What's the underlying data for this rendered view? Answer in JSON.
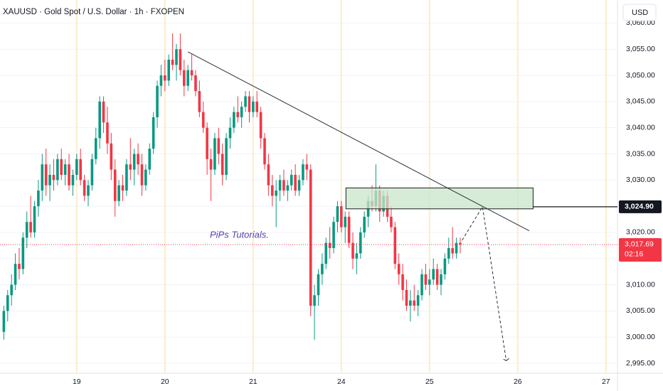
{
  "chart_data": {
    "type": "candlestick",
    "title": "XAUUSD · Gold Spot / U.S. Dollar · 1h · FXOPEN",
    "currency": "USD",
    "watermark": "PiPs Tutorials.",
    "up_color": "#089981",
    "down_color": "#f23645",
    "xlim": [
      -20,
      141
    ],
    "ylim": [
      2993.1,
      3064.4
    ],
    "xticks": [
      {
        "value": 0,
        "label": "19"
      },
      {
        "value": 23,
        "label": "20"
      },
      {
        "value": 46,
        "label": "21"
      },
      {
        "value": 69,
        "label": "24"
      },
      {
        "value": 92,
        "label": "25"
      },
      {
        "value": 115,
        "label": "26"
      },
      {
        "value": 138,
        "label": "27"
      }
    ],
    "yticks": [
      {
        "value": 2995,
        "label": "2,995.00"
      },
      {
        "value": 3000,
        "label": "3,000.00"
      },
      {
        "value": 3005,
        "label": "3,005.00"
      },
      {
        "value": 3010,
        "label": "3,010.00"
      },
      {
        "value": 3015,
        "label": "3,015.00"
      },
      {
        "value": 3020,
        "label": "3,020.00"
      },
      {
        "value": 3025,
        "label": "3,025.00"
      },
      {
        "value": 3030,
        "label": "3,030.00"
      },
      {
        "value": 3035,
        "label": "3,035.00"
      },
      {
        "value": 3040,
        "label": "3,040.00"
      },
      {
        "value": 3045,
        "label": "3,045.00"
      },
      {
        "value": 3050,
        "label": "3,050.00"
      },
      {
        "value": 3055,
        "label": "3,055.00"
      },
      {
        "value": 3060,
        "label": "3,060.00"
      }
    ],
    "x": [
      -19,
      -18,
      -17,
      -16,
      -15,
      -14,
      -13,
      -12,
      -11,
      -10,
      -9,
      -8,
      -7,
      -6,
      -5,
      -4,
      -3,
      -2,
      -1,
      0,
      1,
      2,
      3,
      4,
      5,
      6,
      7,
      8,
      9,
      10,
      11,
      12,
      13,
      14,
      15,
      16,
      17,
      18,
      19,
      20,
      21,
      22,
      23,
      24,
      25,
      26,
      27,
      28,
      29,
      30,
      31,
      32,
      33,
      34,
      35,
      36,
      37,
      38,
      39,
      40,
      41,
      42,
      43,
      44,
      45,
      46,
      47,
      48,
      49,
      50,
      51,
      52,
      53,
      54,
      55,
      56,
      57,
      58,
      59,
      60,
      61,
      62,
      63,
      64,
      65,
      66,
      67,
      68,
      69,
      70,
      71,
      72,
      73,
      74,
      75,
      76,
      77,
      78,
      79,
      80,
      81,
      82,
      83,
      84,
      85,
      86,
      87,
      88,
      89,
      90,
      91,
      92,
      93,
      94,
      95,
      96,
      97,
      98,
      99,
      100
    ],
    "candles": [
      [
        3001,
        3006,
        2999.5,
        3005
      ],
      [
        3005,
        3009,
        3003,
        3008
      ],
      [
        3008,
        3012,
        3006,
        3010
      ],
      [
        3010,
        3016,
        3009,
        3014
      ],
      [
        3014,
        3017,
        3011,
        3013
      ],
      [
        3013,
        3020,
        3012,
        3019
      ],
      [
        3019,
        3024,
        3017,
        3022
      ],
      [
        3022,
        3027,
        3019,
        3020
      ],
      [
        3020,
        3026,
        3019,
        3025
      ],
      [
        3025,
        3030,
        3023,
        3028
      ],
      [
        3028,
        3035,
        3026,
        3033
      ],
      [
        3033,
        3036,
        3027,
        3029
      ],
      [
        3029,
        3033,
        3026,
        3031
      ],
      [
        3031,
        3034,
        3028,
        3030
      ],
      [
        3030,
        3035,
        3029,
        3034
      ],
      [
        3034,
        3036,
        3030,
        3031
      ],
      [
        3031,
        3034,
        3029,
        3033
      ],
      [
        3033,
        3035,
        3028,
        3029
      ],
      [
        3029,
        3032,
        3027,
        3031
      ],
      [
        3031,
        3035,
        3030,
        3034
      ],
      [
        3034,
        3036,
        3029,
        3030
      ],
      [
        3030,
        3031,
        3026,
        3027
      ],
      [
        3027,
        3030,
        3025,
        3029
      ],
      [
        3029,
        3035,
        3028,
        3034
      ],
      [
        3034,
        3040,
        3033,
        3038
      ],
      [
        3038,
        3046,
        3036,
        3045
      ],
      [
        3045,
        3046,
        3039,
        3041
      ],
      [
        3041,
        3044,
        3035,
        3037
      ],
      [
        3037,
        3039,
        3030,
        3032
      ],
      [
        3032,
        3034,
        3023,
        3026
      ],
      [
        3026,
        3030,
        3025,
        3029
      ],
      [
        3029,
        3031,
        3026,
        3028
      ],
      [
        3028,
        3034,
        3027,
        3033
      ],
      [
        3033,
        3038,
        3030,
        3032
      ],
      [
        3032,
        3036,
        3029,
        3035
      ],
      [
        3035,
        3037,
        3031,
        3033
      ],
      [
        3033,
        3035,
        3027,
        3029
      ],
      [
        3029,
        3033,
        3028,
        3032
      ],
      [
        3032,
        3037,
        3031,
        3036
      ],
      [
        3036,
        3043,
        3035,
        3042
      ],
      [
        3042,
        3049,
        3040,
        3048
      ],
      [
        3048,
        3052,
        3046,
        3050
      ],
      [
        3050,
        3053,
        3047,
        3049
      ],
      [
        3049,
        3054,
        3048,
        3053
      ],
      [
        3053,
        3058,
        3051,
        3052
      ],
      [
        3052,
        3056,
        3049,
        3055
      ],
      [
        3055,
        3058,
        3050,
        3051
      ],
      [
        3051,
        3053,
        3046,
        3048
      ],
      [
        3048,
        3052,
        3047,
        3051
      ],
      [
        3051,
        3054,
        3049,
        3050
      ],
      [
        3050,
        3051,
        3046,
        3047
      ],
      [
        3047,
        3049,
        3042,
        3043
      ],
      [
        3043,
        3045,
        3039,
        3040
      ],
      [
        3040,
        3041,
        3031,
        3034
      ],
      [
        3034,
        3036,
        3026,
        3032
      ],
      [
        3032,
        3039,
        3031,
        3038
      ],
      [
        3038,
        3040,
        3033,
        3035
      ],
      [
        3035,
        3037,
        3029,
        3031
      ],
      [
        3031,
        3039,
        3030,
        3038
      ],
      [
        3038,
        3042,
        3036,
        3040
      ],
      [
        3040,
        3044,
        3039,
        3043
      ],
      [
        3043,
        3046,
        3041,
        3042
      ],
      [
        3042,
        3045,
        3040,
        3044
      ],
      [
        3044,
        3047,
        3043,
        3046
      ],
      [
        3046,
        3047,
        3041,
        3043
      ],
      [
        3043,
        3046,
        3042,
        3045
      ],
      [
        3045,
        3047,
        3042,
        3043
      ],
      [
        3043,
        3044,
        3036,
        3038
      ],
      [
        3038,
        3039,
        3032,
        3033
      ],
      [
        3033,
        3035,
        3027,
        3029
      ],
      [
        3029,
        3031,
        3025,
        3027
      ],
      [
        3027,
        3030,
        3021,
        3028
      ],
      [
        3028,
        3031,
        3026,
        3030
      ],
      [
        3030,
        3032,
        3027,
        3028
      ],
      [
        3028,
        3030,
        3026,
        3029
      ],
      [
        3029,
        3032,
        3028,
        3031
      ],
      [
        3031,
        3033,
        3027,
        3028
      ],
      [
        3028,
        3031,
        3027,
        3030
      ],
      [
        3030,
        3034,
        3029,
        3033
      ],
      [
        3033,
        3035,
        3030,
        3032
      ],
      [
        3032,
        3033,
        3004,
        3006
      ],
      [
        3006,
        3010,
        2999.5,
        3008
      ],
      [
        3008,
        3013,
        3006,
        3012
      ],
      [
        3012,
        3016,
        3010,
        3014
      ],
      [
        3014,
        3019,
        3013,
        3018
      ],
      [
        3018,
        3021,
        3015,
        3017
      ],
      [
        3017,
        3023,
        3016,
        3022
      ],
      [
        3022,
        3026,
        3020,
        3025
      ],
      [
        3025,
        3026,
        3020,
        3021
      ],
      [
        3021,
        3024,
        3018,
        3023
      ],
      [
        3023,
        3024,
        3017,
        3018
      ],
      [
        3018,
        3020,
        3013,
        3015
      ],
      [
        3015,
        3018,
        3012,
        3016
      ],
      [
        3016,
        3021,
        3015,
        3020
      ],
      [
        3020,
        3024,
        3019,
        3023
      ],
      [
        3023,
        3027,
        3021,
        3026
      ],
      [
        3026,
        3029,
        3024,
        3025
      ],
      [
        3025,
        3033,
        3024,
        3028
      ],
      [
        3028,
        3029,
        3022,
        3024
      ],
      [
        3024,
        3028,
        3023,
        3027
      ],
      [
        3027,
        3028,
        3022,
        3023
      ],
      [
        3023,
        3025,
        3020,
        3021
      ],
      [
        3021,
        3022,
        3013,
        3014
      ],
      [
        3014,
        3016,
        3010,
        3012
      ],
      [
        3012,
        3014,
        3007,
        3009
      ],
      [
        3009,
        3011,
        3005,
        3006
      ],
      [
        3006,
        3009,
        3003,
        3007
      ],
      [
        3007,
        3010,
        3005,
        3006
      ],
      [
        3006,
        3009,
        3004,
        3008
      ],
      [
        3008,
        3013,
        3007,
        3012
      ],
      [
        3012,
        3014,
        3009,
        3010
      ],
      [
        3010,
        3013,
        3008,
        3011
      ],
      [
        3011,
        3015,
        3010,
        3013
      ],
      [
        3013,
        3014,
        3009,
        3010
      ],
      [
        3010,
        3013,
        3008,
        3012
      ],
      [
        3012,
        3016,
        3011,
        3015
      ],
      [
        3015,
        3019,
        3014,
        3017
      ],
      [
        3017,
        3021,
        3015,
        3016
      ],
      [
        3016,
        3019,
        3015,
        3018
      ],
      [
        3018,
        3019,
        3016,
        3017.69
      ]
    ],
    "last_price": {
      "value": 3017.69,
      "label": "3,017.69"
    },
    "countdown": "02:16",
    "trendline": {
      "x": [
        29,
        118
      ],
      "y": [
        3054.5,
        3020.3
      ]
    },
    "zone": {
      "x": [
        70.2,
        119
      ],
      "y": [
        3024.5,
        3028.5
      ],
      "color": "#c8e6c9"
    },
    "level": {
      "x": 119,
      "value": 3024.9,
      "label": "3,024.90"
    },
    "projection": {
      "x": [
        100.5,
        105.8,
        112
      ],
      "y": [
        3018.5,
        3024.9,
        2995.5
      ]
    }
  }
}
